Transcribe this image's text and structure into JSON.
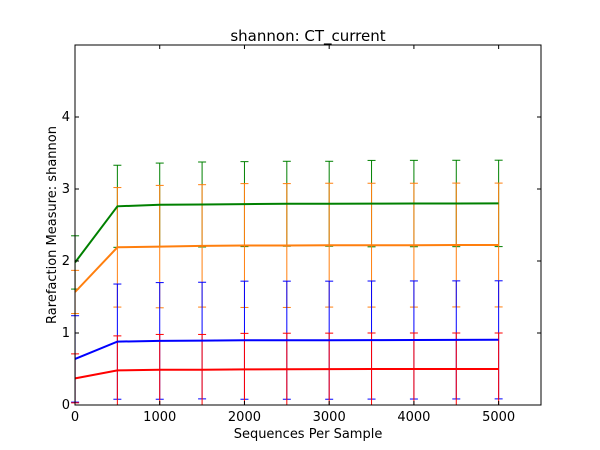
{
  "chart_data": {
    "type": "line",
    "title": "shannon: CT_current",
    "xlabel": "Sequences Per Sample",
    "ylabel": "Rarefaction Measure: shannon",
    "xlim": [
      0,
      5500
    ],
    "ylim": [
      0,
      5
    ],
    "x_ticks": [
      0,
      1000,
      2000,
      3000,
      4000,
      5000
    ],
    "y_ticks": [
      0,
      1,
      2,
      3,
      4
    ],
    "grid": false,
    "legend": "none",
    "x": [
      1,
      500,
      1000,
      1500,
      2000,
      2500,
      3000,
      3500,
      4000,
      4500,
      5000
    ],
    "series": [
      {
        "color": "#008000",
        "values": [
          1.98,
          2.76,
          2.78,
          2.785,
          2.79,
          2.795,
          2.795,
          2.797,
          2.798,
          2.799,
          2.8
        ],
        "error": [
          0.37,
          0.57,
          0.58,
          0.59,
          0.59,
          0.59,
          0.59,
          0.6,
          0.6,
          0.6,
          0.6
        ]
      },
      {
        "color": "#ff7f0e",
        "values": [
          1.57,
          2.19,
          2.2,
          2.21,
          2.215,
          2.215,
          2.22,
          2.22,
          2.22,
          2.222,
          2.222
        ],
        "error": [
          0.3,
          0.83,
          0.85,
          0.85,
          0.86,
          0.86,
          0.86,
          0.86,
          0.86,
          0.86,
          0.86
        ]
      },
      {
        "color": "#0000ff",
        "values": [
          0.64,
          0.88,
          0.89,
          0.895,
          0.9,
          0.9,
          0.9,
          0.902,
          0.903,
          0.904,
          0.905
        ],
        "error": [
          0.6,
          0.8,
          0.81,
          0.81,
          0.82,
          0.82,
          0.82,
          0.82,
          0.82,
          0.82,
          0.82
        ]
      },
      {
        "color": "#ff0000",
        "values": [
          0.37,
          0.48,
          0.49,
          0.49,
          0.495,
          0.497,
          0.498,
          0.5,
          0.5,
          0.5,
          0.5
        ],
        "error": [
          0.34,
          0.48,
          0.49,
          0.49,
          0.5,
          0.5,
          0.5,
          0.5,
          0.5,
          0.5,
          0.5
        ]
      }
    ]
  }
}
